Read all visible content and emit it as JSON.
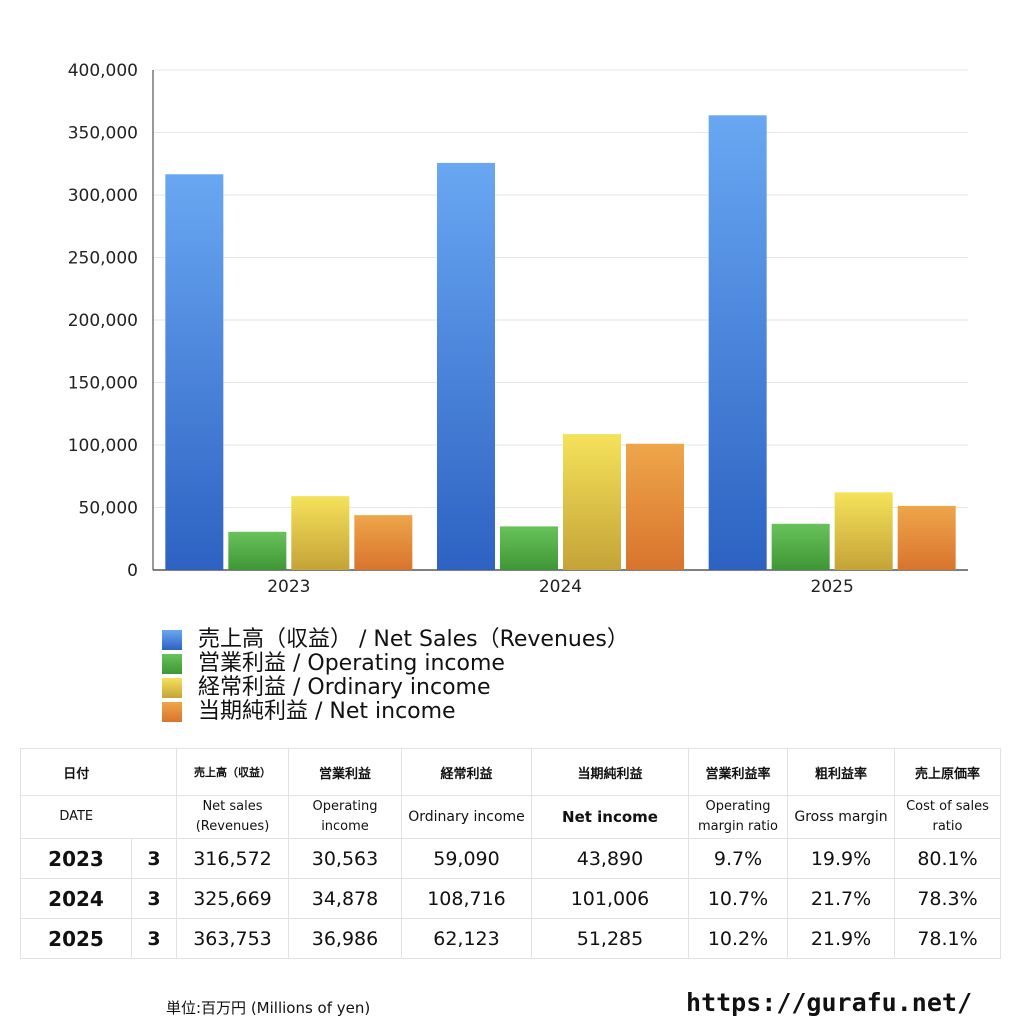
{
  "chart_data": {
    "type": "bar",
    "categories": [
      "2023",
      "2024",
      "2025"
    ],
    "series": [
      {
        "name": "売上高（収益） / Net Sales（Revenues）",
        "values": [
          316572,
          325669,
          363753
        ],
        "color_top": "#69a7f2",
        "color_bottom": "#2d62c2"
      },
      {
        "name": "営業利益 / Operating income",
        "values": [
          30563,
          34878,
          36986
        ],
        "color_top": "#68c25a",
        "color_bottom": "#3f9636"
      },
      {
        "name": "経常利益 / Ordinary income",
        "values": [
          59090,
          108716,
          62123
        ],
        "color_top": "#f5e25a",
        "color_bottom": "#c4a338"
      },
      {
        "name": "当期純利益 / Net income",
        "values": [
          43890,
          101006,
          51285
        ],
        "color_top": "#eea64a",
        "color_bottom": "#d8742d"
      }
    ],
    "ylim": [
      0,
      400000
    ],
    "yticks": [
      "0",
      "50,000",
      "100,000",
      "150,000",
      "200,000",
      "250,000",
      "300,000",
      "350,000",
      "400,000"
    ],
    "grid": true,
    "legend_position": "bottom"
  },
  "table": {
    "header_jp": [
      "日付",
      "売上高（収益）",
      "営業利益",
      "経常利益",
      "当期純利益",
      "営業利益率",
      "粗利益率",
      "売上原価率"
    ],
    "header_en": [
      "DATE",
      "Net sales (Revenues)",
      "Operating income",
      "Ordinary income",
      "Net income",
      "Operating margin ratio",
      "Gross margin",
      "Cost of sales ratio"
    ],
    "rows": [
      [
        "2023",
        "3",
        "316,572",
        "30,563",
        "59,090",
        "43,890",
        "9.7%",
        "19.9%",
        "80.1%"
      ],
      [
        "2024",
        "3",
        "325,669",
        "34,878",
        "108,716",
        "101,006",
        "10.7%",
        "21.7%",
        "78.3%"
      ],
      [
        "2025",
        "3",
        "363,753",
        "36,986",
        "62,123",
        "51,285",
        "10.2%",
        "21.9%",
        "78.1%"
      ]
    ]
  },
  "footer": {
    "unit": "単位:百万円 (Millions of yen)",
    "url": "https://gurafu.net/"
  }
}
